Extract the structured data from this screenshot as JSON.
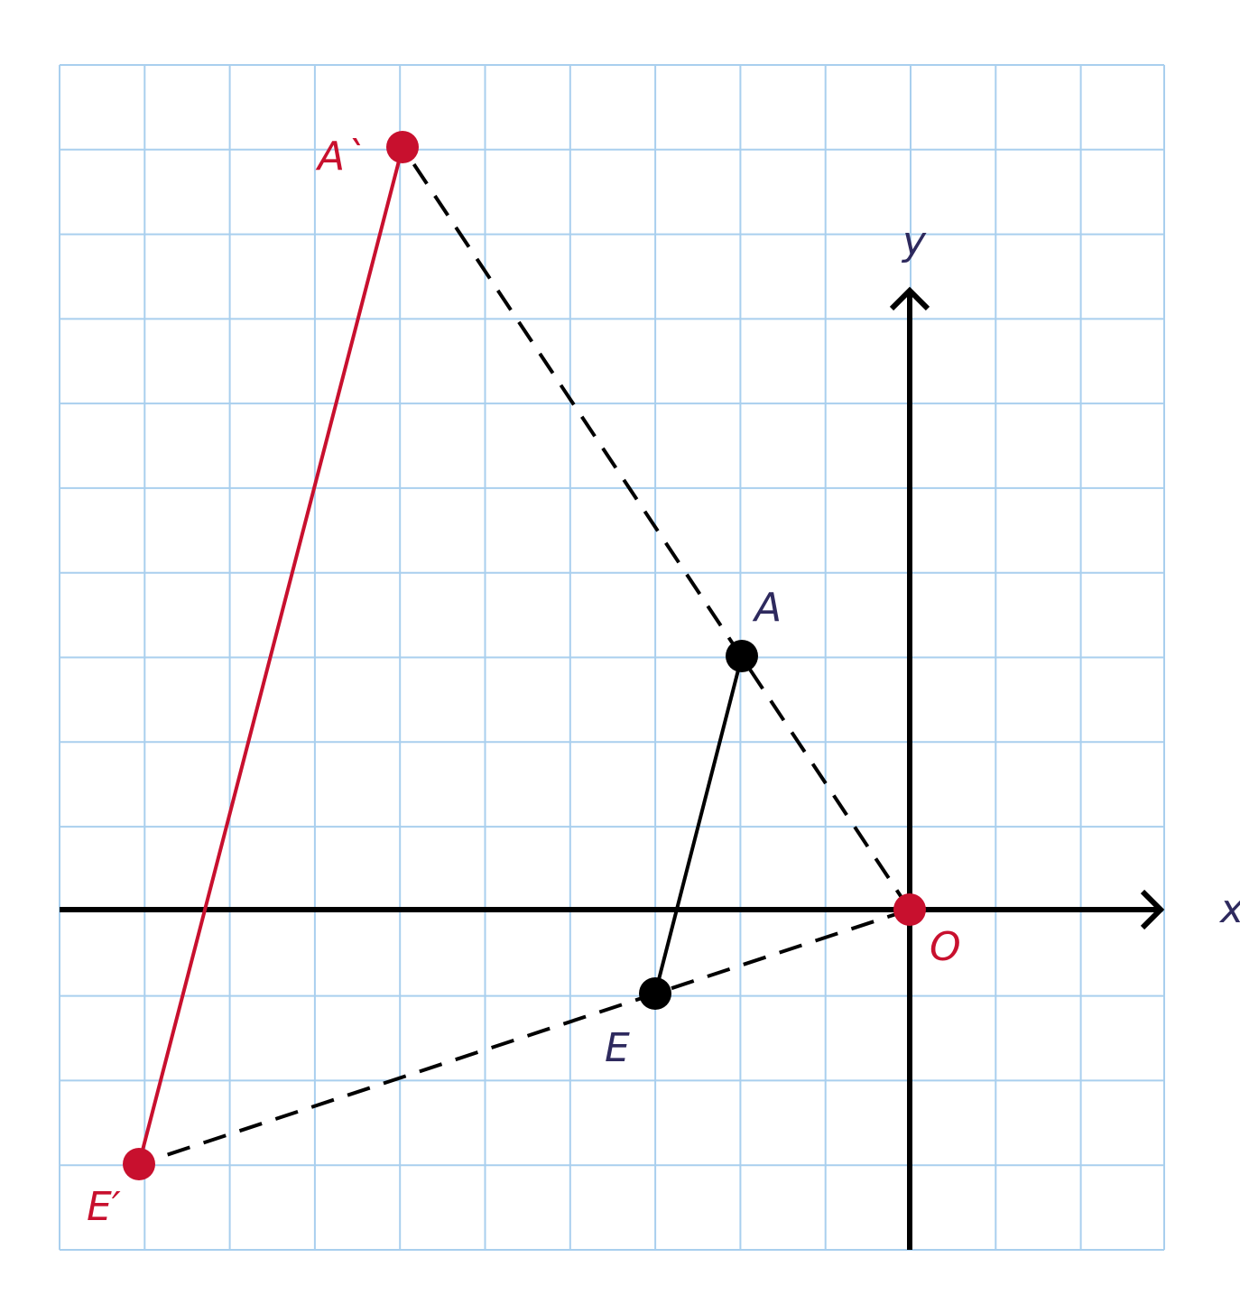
{
  "axes": {
    "x": "x",
    "y": "y"
  },
  "nodes": [
    {
      "label": "A`"
    },
    {
      "label": "A"
    },
    {
      "label": "E"
    },
    {
      "label": "E′"
    },
    {
      "label": "O"
    }
  ]
}
